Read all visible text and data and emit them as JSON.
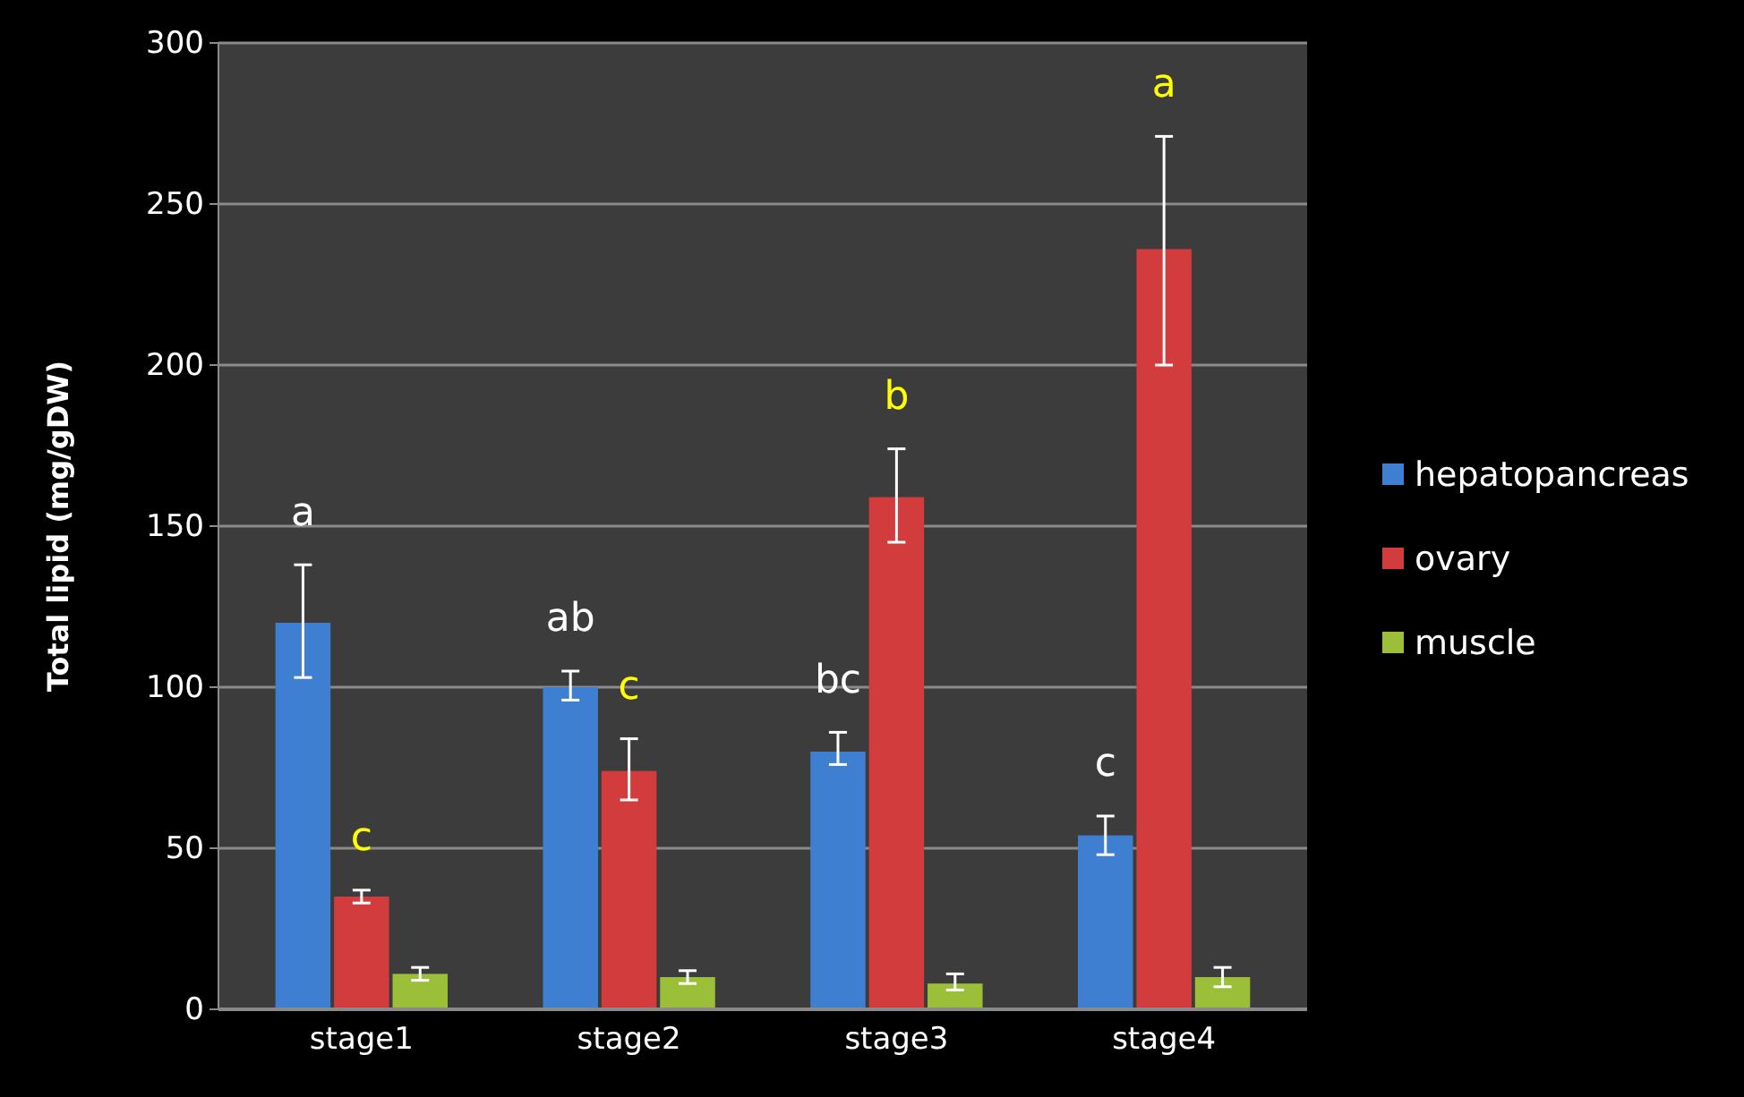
{
  "chart_data": {
    "type": "bar",
    "ylabel": "Total lipid (mg/gDW)",
    "categories": [
      "stage1",
      "stage2",
      "stage3",
      "stage4"
    ],
    "series": [
      {
        "name": "hepatopancreas",
        "color": "#3f7fd1",
        "values": [
          120,
          100,
          80,
          54
        ],
        "errors": [
          [
            103,
            138
          ],
          [
            96,
            105
          ],
          [
            76,
            86
          ],
          [
            48,
            60
          ]
        ]
      },
      {
        "name": "ovary",
        "color": "#d23c3c",
        "values": [
          35,
          74,
          159,
          236
        ],
        "errors": [
          [
            33,
            37
          ],
          [
            65,
            84
          ],
          [
            145,
            174
          ],
          [
            200,
            271
          ]
        ]
      },
      {
        "name": "muscle",
        "color": "#9cbf3a",
        "values": [
          11,
          10,
          8,
          10
        ],
        "errors": [
          [
            9,
            13
          ],
          [
            8,
            12
          ],
          [
            6,
            11
          ],
          [
            7,
            13
          ]
        ]
      }
    ],
    "ylim": [
      0,
      300
    ],
    "yticks": [
      0,
      50,
      100,
      150,
      200,
      250,
      300
    ],
    "grid": "y",
    "legend": "right",
    "annotations": [
      "a",
      "c",
      "ab",
      "c",
      "bc",
      "b",
      "c",
      "a"
    ]
  }
}
